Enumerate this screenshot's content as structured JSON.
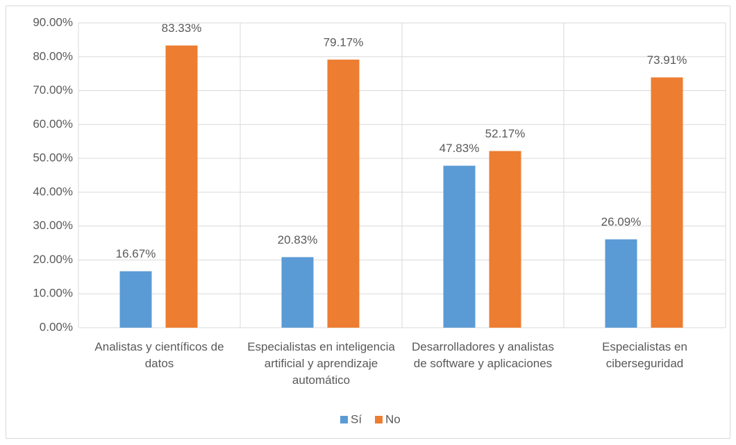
{
  "chart_data": {
    "type": "bar",
    "categories": [
      "Analistas y científicos de datos",
      "Especialistas en inteligencia artificial y aprendizaje automático",
      "Desarrolladores y analistas de software y aplicaciones",
      "Especialistas en ciberseguridad"
    ],
    "series": [
      {
        "name": "Sí",
        "color": "#5b9bd5",
        "values": [
          16.67,
          20.83,
          47.83,
          26.09
        ],
        "value_labels": [
          "16.67%",
          "20.83%",
          "47.83%",
          "26.09%"
        ]
      },
      {
        "name": "No",
        "color": "#ed7d31",
        "values": [
          83.33,
          79.17,
          52.17,
          73.91
        ],
        "value_labels": [
          "83.33%",
          "79.17%",
          "52.17%",
          "73.91%"
        ]
      }
    ],
    "ylim": [
      0,
      90
    ],
    "yticks": [
      {
        "value": 0,
        "label": "0.00%"
      },
      {
        "value": 10,
        "label": "10.00%"
      },
      {
        "value": 20,
        "label": "20.00%"
      },
      {
        "value": 30,
        "label": "30.00%"
      },
      {
        "value": 40,
        "label": "40.00%"
      },
      {
        "value": 50,
        "label": "50.00%"
      },
      {
        "value": 60,
        "label": "60.00%"
      },
      {
        "value": 70,
        "label": "70.00%"
      },
      {
        "value": 80,
        "label": "80.00%"
      },
      {
        "value": 90,
        "label": "90.00%"
      }
    ],
    "grid": true,
    "legend": "bottom"
  }
}
